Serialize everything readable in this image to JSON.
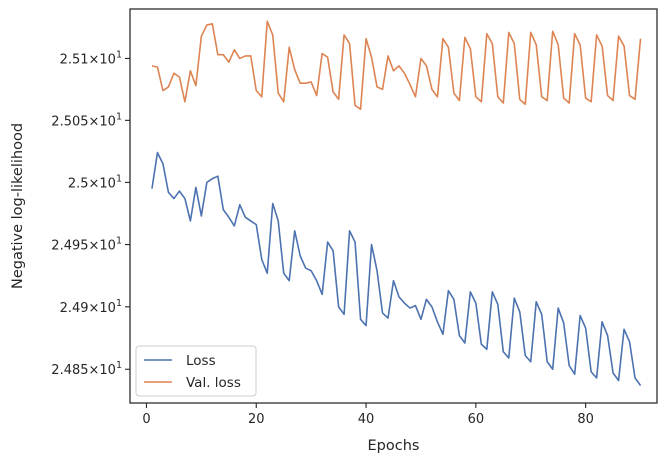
{
  "chart_data": {
    "type": "line",
    "title": "",
    "xlabel": "Epochs",
    "ylabel": "Negative log-likelihood",
    "xlim": [
      -3,
      93
    ],
    "ylim": [
      24.823,
      25.14
    ],
    "x_ticks": [
      {
        "value": 0,
        "label": "0"
      },
      {
        "value": 20,
        "label": "20"
      },
      {
        "value": 40,
        "label": "40"
      },
      {
        "value": 60,
        "label": "60"
      },
      {
        "value": 80,
        "label": "80"
      }
    ],
    "y_ticks": [
      {
        "value": 24.85,
        "base": "2.485",
        "exp": "1"
      },
      {
        "value": 24.9,
        "base": "2.49",
        "exp": "1"
      },
      {
        "value": 24.95,
        "base": "2.495",
        "exp": "1"
      },
      {
        "value": 25.0,
        "base": "2.5",
        "exp": "1"
      },
      {
        "value": 25.05,
        "base": "2.505",
        "exp": "1"
      },
      {
        "value": 25.1,
        "base": "2.51",
        "exp": "1"
      }
    ],
    "y_scale": "log",
    "grid": false,
    "legend_position": "lower-left",
    "x": [
      1,
      2,
      3,
      4,
      5,
      6,
      7,
      8,
      9,
      10,
      11,
      12,
      13,
      14,
      15,
      16,
      17,
      18,
      19,
      20,
      21,
      22,
      23,
      24,
      25,
      26,
      27,
      28,
      29,
      30,
      31,
      32,
      33,
      34,
      35,
      36,
      37,
      38,
      39,
      40,
      41,
      42,
      43,
      44,
      45,
      46,
      47,
      48,
      49,
      50,
      51,
      52,
      53,
      54,
      55,
      56,
      57,
      58,
      59,
      60,
      61,
      62,
      63,
      64,
      65,
      66,
      67,
      68,
      69,
      70,
      71,
      72,
      73,
      74,
      75,
      76,
      77,
      78,
      79,
      80,
      81,
      82,
      83,
      84,
      85,
      86,
      87,
      88,
      89,
      90
    ],
    "series": [
      {
        "name": "Loss",
        "color": "#4c72b0",
        "values": [
          24.995,
          25.024,
          25.015,
          24.992,
          24.987,
          24.993,
          24.987,
          24.969,
          24.996,
          24.973,
          25.0,
          25.003,
          25.005,
          24.978,
          24.972,
          24.965,
          24.982,
          24.972,
          24.969,
          24.966,
          24.938,
          24.927,
          24.983,
          24.969,
          24.927,
          24.921,
          24.961,
          24.941,
          24.931,
          24.929,
          24.921,
          24.91,
          24.952,
          24.945,
          24.9,
          24.894,
          24.961,
          24.952,
          24.89,
          24.885,
          24.95,
          24.929,
          24.895,
          24.891,
          24.921,
          24.908,
          24.903,
          24.899,
          24.901,
          24.89,
          24.906,
          24.9,
          24.888,
          24.878,
          24.913,
          24.906,
          24.877,
          24.871,
          24.912,
          24.903,
          24.87,
          24.866,
          24.912,
          24.902,
          24.864,
          24.859,
          24.907,
          24.896,
          24.861,
          24.856,
          24.904,
          24.894,
          24.856,
          24.85,
          24.899,
          24.887,
          24.853,
          24.846,
          24.893,
          24.883,
          24.848,
          24.843,
          24.888,
          24.877,
          24.847,
          24.841,
          24.882,
          24.872,
          24.843,
          24.837
        ]
      },
      {
        "name": "Val. loss",
        "color": "#dd8452",
        "values": [
          25.094,
          25.093,
          25.074,
          25.077,
          25.088,
          25.085,
          25.065,
          25.09,
          25.078,
          25.118,
          25.127,
          25.128,
          25.103,
          25.103,
          25.097,
          25.107,
          25.1,
          25.102,
          25.102,
          25.074,
          25.069,
          25.13,
          25.119,
          25.072,
          25.065,
          25.109,
          25.091,
          25.08,
          25.08,
          25.081,
          25.07,
          25.104,
          25.101,
          25.073,
          25.067,
          25.119,
          25.112,
          25.062,
          25.059,
          25.116,
          25.101,
          25.077,
          25.075,
          25.102,
          25.09,
          25.094,
          25.088,
          25.079,
          25.069,
          25.1,
          25.094,
          25.075,
          25.069,
          25.116,
          25.109,
          25.072,
          25.066,
          25.117,
          25.108,
          25.069,
          25.065,
          25.12,
          25.112,
          25.069,
          25.064,
          25.121,
          25.112,
          25.067,
          25.063,
          25.121,
          25.111,
          25.069,
          25.066,
          25.122,
          25.111,
          25.068,
          25.064,
          25.12,
          25.111,
          25.068,
          25.065,
          25.119,
          25.11,
          25.07,
          25.066,
          25.118,
          25.11,
          25.07,
          25.067,
          25.116
        ]
      }
    ]
  }
}
